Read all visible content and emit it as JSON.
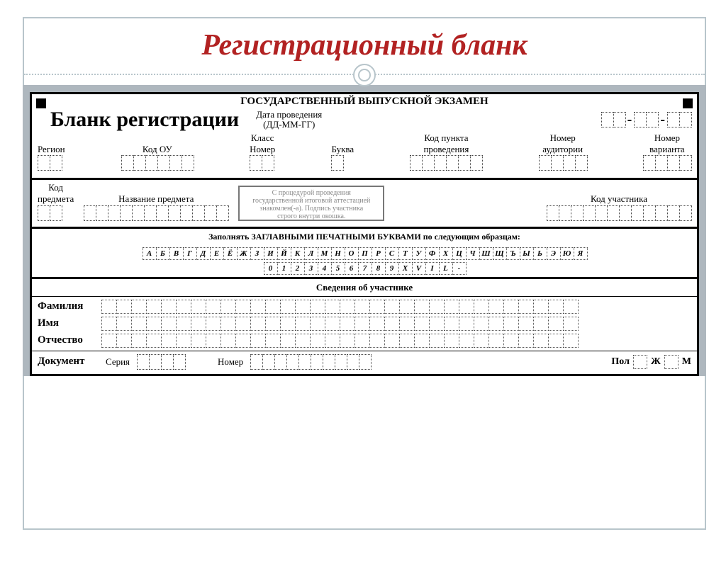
{
  "slide_title": "Регистрационный бланк",
  "form": {
    "header": "ГОСУДАРСТВЕННЫЙ ВЫПУСКНОЙ ЭКЗАМЕН",
    "big_title": "Бланк регистрации",
    "date_label_l1": "Дата проведения",
    "date_label_l2": "(ДД-ММ-ГГ)",
    "fields_row1": {
      "region": "Регион",
      "kod_ou": "Код ОУ",
      "class_group": "Класс",
      "class_num": "Номер",
      "class_letter": "Буква",
      "kod_punkta_l1": "Код пункта",
      "kod_punkta_l2": "проведения",
      "nomer_aud_l1": "Номер",
      "nomer_aud_l2": "аудитории",
      "nomer_var_l1": "Номер",
      "nomer_var_l2": "варианта"
    },
    "fields_row2": {
      "kod_predmeta_l1": "Код",
      "kod_predmeta_l2": "предмета",
      "nazvanie": "Название предмета",
      "signature_l1": "С процедурой проведения",
      "signature_l2": "государственной итоговой аттестацией",
      "signature_l3": "знакомлен(-а). Подпись участника",
      "signature_l4": "строго внутри окошка.",
      "kod_uch": "Код участника"
    },
    "samples_label": "Заполнять ЗАГЛАВНЫМИ ПЕЧАТНЫМИ БУКВАМИ по следующим образцам:",
    "alphabet": [
      "А",
      "Б",
      "В",
      "Г",
      "Д",
      "Е",
      "Ё",
      "Ж",
      "З",
      "И",
      "Й",
      "К",
      "Л",
      "М",
      "Н",
      "О",
      "П",
      "Р",
      "С",
      "Т",
      "У",
      "Ф",
      "Х",
      "Ц",
      "Ч",
      "Ш",
      "Щ",
      "Ъ",
      "Ы",
      "Ь",
      "Э",
      "Ю",
      "Я"
    ],
    "digits": [
      "0",
      "1",
      "2",
      "3",
      "4",
      "5",
      "6",
      "7",
      "8",
      "9",
      "X",
      "V",
      "I",
      "L",
      "-"
    ],
    "participant_header": "Сведения об участнике",
    "fio": {
      "surname": "Фамилия",
      "name": "Имя",
      "patronymic": "Отчество"
    },
    "document": {
      "label": "Документ",
      "series": "Серия",
      "number": "Номер",
      "gender": "Пол",
      "f": "Ж",
      "m": "М"
    }
  },
  "cell_counts": {
    "date_dd": 2,
    "date_mm": 2,
    "date_yy": 2,
    "region": 2,
    "kod_ou": 6,
    "class_num": 2,
    "class_letter": 1,
    "kod_punkta": 6,
    "nomer_aud": 4,
    "nomer_var": 4,
    "kod_predmeta": 2,
    "nazvanie": 12,
    "kod_uch": 12,
    "fio": 32,
    "series": 4,
    "number": 10
  },
  "colors": {
    "title": "#b22222",
    "border": "#b8c5cb",
    "graybg": "#aeb7be"
  }
}
